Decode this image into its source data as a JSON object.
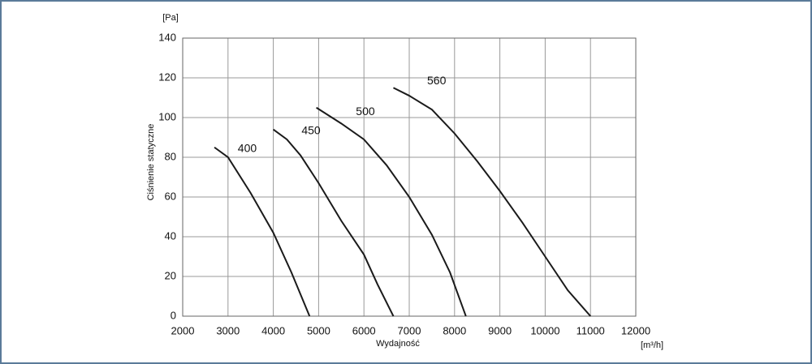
{
  "chart_data": {
    "type": "line",
    "y_unit": "[Pa]",
    "x_unit": "[m³/h]",
    "y_label": "Ciśnienie statyczne",
    "x_label": "Wydajność",
    "xlim": [
      2000,
      12000
    ],
    "xticks": [
      2000,
      3000,
      4000,
      5000,
      6000,
      7000,
      8000,
      9000,
      10000,
      11000,
      12000
    ],
    "ylim": [
      0,
      140
    ],
    "yticks": [
      0,
      20,
      40,
      60,
      80,
      100,
      120,
      140
    ],
    "grid": true,
    "series": [
      {
        "name": "400",
        "color": "#1a1a1a",
        "x": [
          2700,
          3000,
          3500,
          4000,
          4400,
          4800
        ],
        "values": [
          85,
          80,
          62,
          42,
          22,
          0
        ]
      },
      {
        "name": "450",
        "color": "#1a1a1a",
        "x": [
          4000,
          4300,
          4600,
          5000,
          5500,
          6000,
          6300,
          6650
        ],
        "values": [
          94,
          89,
          81,
          67,
          48,
          31,
          16,
          0
        ]
      },
      {
        "name": "500",
        "color": "#1a1a1a",
        "x": [
          4950,
          5500,
          6000,
          6500,
          7000,
          7500,
          7900,
          8250
        ],
        "values": [
          105,
          97,
          89,
          76,
          60,
          41,
          22,
          0
        ]
      },
      {
        "name": "560",
        "color": "#1a1a1a",
        "x": [
          6650,
          7000,
          7500,
          8000,
          8500,
          9000,
          9500,
          10000,
          10500,
          11000
        ],
        "values": [
          115,
          111,
          104,
          92,
          78,
          63,
          47,
          30,
          13,
          0
        ]
      }
    ]
  }
}
